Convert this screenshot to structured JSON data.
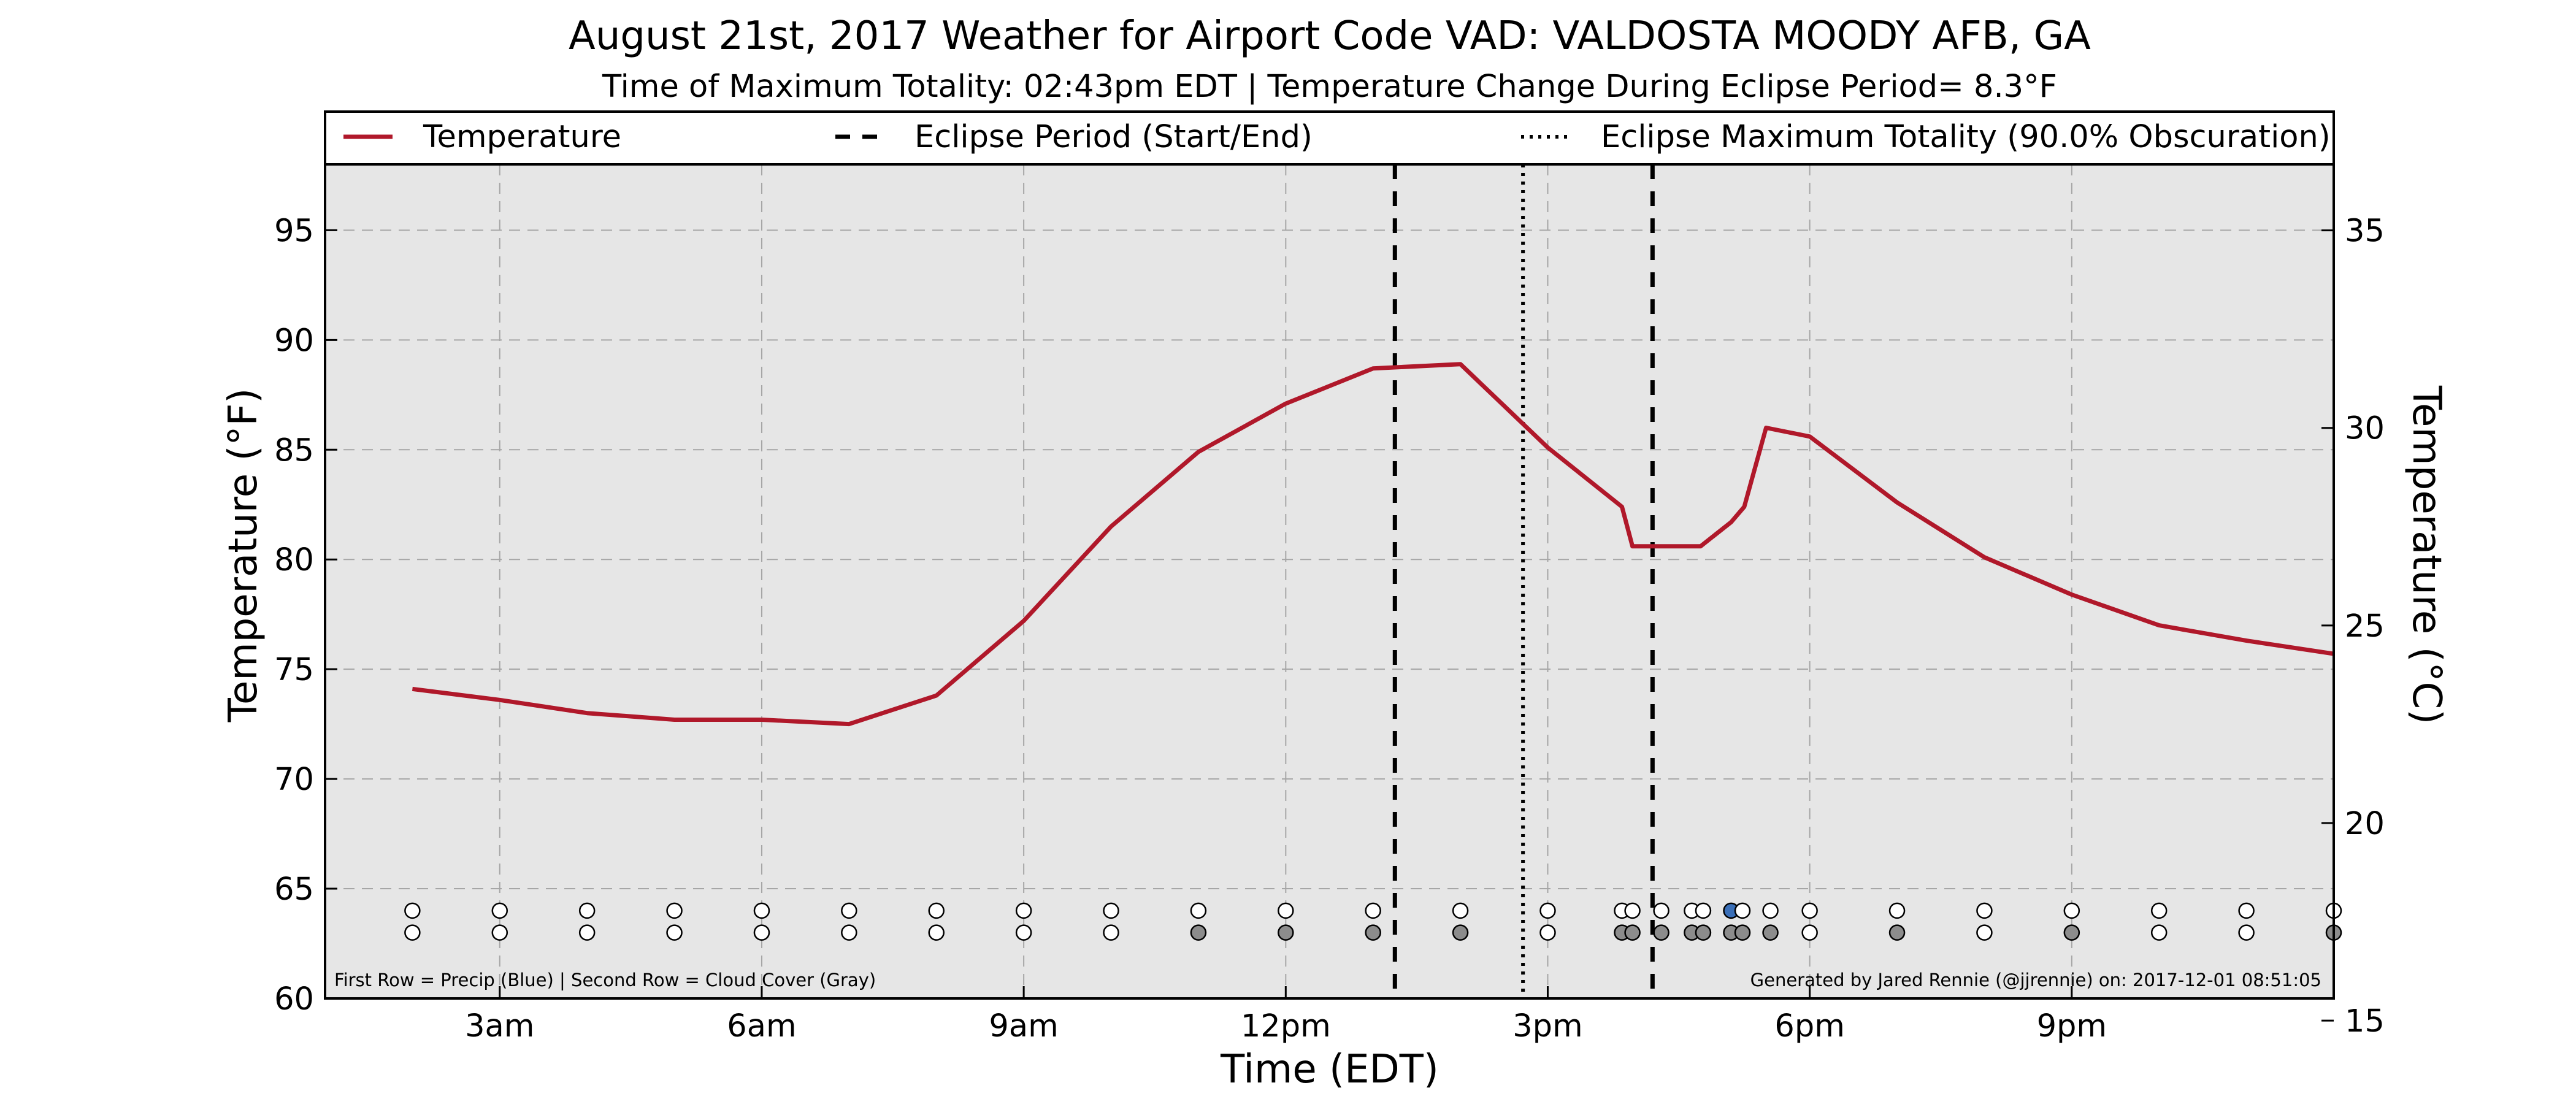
{
  "chart_data": {
    "type": "line",
    "title": "August 21st, 2017 Weather for Airport Code VAD: VALDOSTA MOODY AFB, GA",
    "subtitle": "Time of Maximum Totality: 02:43pm EDT | Temperature Change During Eclipse Period= 8.3°F",
    "xlabel": "Time (EDT)",
    "ylabel": "Temperature (°F)",
    "y2label": "Temperature (°C)",
    "xlim": [
      1.0,
      24.0
    ],
    "ylim": [
      60,
      98
    ],
    "y2lim": [
      15.56,
      36.67
    ],
    "x_ticks": [
      {
        "x": 3,
        "label": "3am"
      },
      {
        "x": 6,
        "label": "6am"
      },
      {
        "x": 9,
        "label": "9am"
      },
      {
        "x": 12,
        "label": "12pm"
      },
      {
        "x": 15,
        "label": "3pm"
      },
      {
        "x": 18,
        "label": "6pm"
      },
      {
        "x": 21,
        "label": "9pm"
      }
    ],
    "y_ticks": [
      60,
      65,
      70,
      75,
      80,
      85,
      90,
      95
    ],
    "y2_ticks": [
      15,
      20,
      25,
      30,
      35
    ],
    "grid": true,
    "legend_position": "top",
    "legend": [
      {
        "label": "Temperature",
        "style": "solid",
        "color": "#b0182a"
      },
      {
        "label": "Eclipse Period (Start/End)",
        "style": "dashed",
        "color": "#000000"
      },
      {
        "label": "Eclipse Maximum Totality (90.0% Obscuration)",
        "style": "dotted",
        "color": "#000000"
      }
    ],
    "series": [
      {
        "name": "Temperature",
        "color": "#b0182a",
        "points": [
          [
            2.0,
            74.1
          ],
          [
            3.0,
            73.6
          ],
          [
            4.0,
            73.0
          ],
          [
            5.0,
            72.7
          ],
          [
            6.0,
            72.7
          ],
          [
            7.0,
            72.5
          ],
          [
            8.0,
            73.8
          ],
          [
            9.0,
            77.2
          ],
          [
            10.0,
            81.5
          ],
          [
            11.0,
            84.9
          ],
          [
            12.0,
            87.1
          ],
          [
            13.0,
            88.7
          ],
          [
            14.0,
            88.9
          ],
          [
            15.0,
            85.1
          ],
          [
            15.85,
            82.4
          ],
          [
            15.97,
            80.6
          ],
          [
            16.25,
            80.6
          ],
          [
            16.75,
            80.6
          ],
          [
            17.1,
            81.7
          ],
          [
            17.25,
            82.4
          ],
          [
            17.5,
            86.0
          ],
          [
            18.0,
            85.6
          ],
          [
            19.0,
            82.6
          ],
          [
            20.0,
            80.1
          ],
          [
            21.0,
            78.4
          ],
          [
            22.0,
            77.0
          ],
          [
            23.0,
            76.3
          ],
          [
            24.0,
            75.7
          ]
        ]
      }
    ],
    "eclipse_start": 13.25,
    "eclipse_max": 14.7167,
    "eclipse_end": 16.2,
    "markers": {
      "precip_row_y": 64.0,
      "cloud_row_y": 63.0,
      "precip": [
        {
          "x": 2.0,
          "color": "#ffffff"
        },
        {
          "x": 3.0,
          "color": "#ffffff"
        },
        {
          "x": 4.0,
          "color": "#ffffff"
        },
        {
          "x": 5.0,
          "color": "#ffffff"
        },
        {
          "x": 6.0,
          "color": "#ffffff"
        },
        {
          "x": 7.0,
          "color": "#ffffff"
        },
        {
          "x": 8.0,
          "color": "#ffffff"
        },
        {
          "x": 9.0,
          "color": "#ffffff"
        },
        {
          "x": 10.0,
          "color": "#ffffff"
        },
        {
          "x": 11.0,
          "color": "#ffffff"
        },
        {
          "x": 12.0,
          "color": "#ffffff"
        },
        {
          "x": 13.0,
          "color": "#ffffff"
        },
        {
          "x": 14.0,
          "color": "#ffffff"
        },
        {
          "x": 15.0,
          "color": "#ffffff"
        },
        {
          "x": 15.85,
          "color": "#ffffff"
        },
        {
          "x": 15.97,
          "color": "#ffffff"
        },
        {
          "x": 16.3,
          "color": "#ffffff"
        },
        {
          "x": 16.65,
          "color": "#ffffff"
        },
        {
          "x": 16.78,
          "color": "#ffffff"
        },
        {
          "x": 17.1,
          "color": "#3a6fb8"
        },
        {
          "x": 17.23,
          "color": "#ffffff"
        },
        {
          "x": 17.55,
          "color": "#ffffff"
        },
        {
          "x": 18.0,
          "color": "#ffffff"
        },
        {
          "x": 19.0,
          "color": "#ffffff"
        },
        {
          "x": 20.0,
          "color": "#ffffff"
        },
        {
          "x": 21.0,
          "color": "#ffffff"
        },
        {
          "x": 22.0,
          "color": "#ffffff"
        },
        {
          "x": 23.0,
          "color": "#ffffff"
        },
        {
          "x": 24.0,
          "color": "#ffffff"
        }
      ],
      "cloud": [
        {
          "x": 2.0,
          "color": "#ffffff"
        },
        {
          "x": 3.0,
          "color": "#ffffff"
        },
        {
          "x": 4.0,
          "color": "#ffffff"
        },
        {
          "x": 5.0,
          "color": "#ffffff"
        },
        {
          "x": 6.0,
          "color": "#ffffff"
        },
        {
          "x": 7.0,
          "color": "#ffffff"
        },
        {
          "x": 8.0,
          "color": "#ffffff"
        },
        {
          "x": 9.0,
          "color": "#ffffff"
        },
        {
          "x": 10.0,
          "color": "#ffffff"
        },
        {
          "x": 11.0,
          "color": "#8c8c8c"
        },
        {
          "x": 12.0,
          "color": "#8c8c8c"
        },
        {
          "x": 13.0,
          "color": "#8c8c8c"
        },
        {
          "x": 14.0,
          "color": "#8c8c8c"
        },
        {
          "x": 15.0,
          "color": "#ffffff"
        },
        {
          "x": 15.85,
          "color": "#8c8c8c"
        },
        {
          "x": 15.97,
          "color": "#8c8c8c"
        },
        {
          "x": 16.3,
          "color": "#8c8c8c"
        },
        {
          "x": 16.65,
          "color": "#8c8c8c"
        },
        {
          "x": 16.78,
          "color": "#8c8c8c"
        },
        {
          "x": 17.1,
          "color": "#8c8c8c"
        },
        {
          "x": 17.23,
          "color": "#8c8c8c"
        },
        {
          "x": 17.55,
          "color": "#8c8c8c"
        },
        {
          "x": 18.0,
          "color": "#ffffff"
        },
        {
          "x": 19.0,
          "color": "#8c8c8c"
        },
        {
          "x": 20.0,
          "color": "#ffffff"
        },
        {
          "x": 21.0,
          "color": "#8c8c8c"
        },
        {
          "x": 22.0,
          "color": "#ffffff"
        },
        {
          "x": 23.0,
          "color": "#ffffff"
        },
        {
          "x": 24.0,
          "color": "#8c8c8c"
        }
      ]
    },
    "footnote_left": "First Row = Precip (Blue) | Second Row = Cloud Cover (Gray)",
    "footnote_right": "Generated by Jared Rennie (@jjrennie) on: 2017-12-01 08:51:05"
  }
}
